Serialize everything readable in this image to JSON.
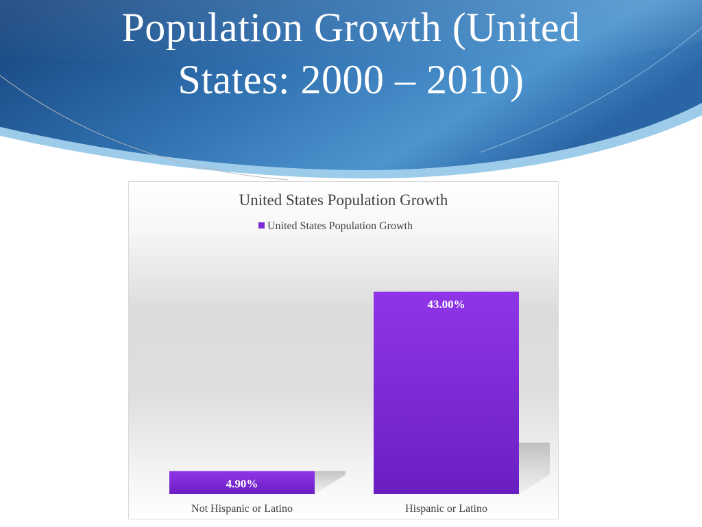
{
  "slide": {
    "title_line1": "Population Growth (United",
    "title_line2": "States: 2000 – 2010)"
  },
  "colors": {
    "banner_dark": "#1b4f8c",
    "banner_light": "#5ea8d8",
    "bar_top": "#8f35e8",
    "bar_bottom": "#6a1fc2",
    "text": "#404040",
    "label": "#ffffff"
  },
  "chart_data": {
    "type": "bar",
    "title": "United States Population Growth",
    "legend": [
      "United States Population Growth"
    ],
    "legend_position": "top",
    "categories": [
      "Not Hispanic or Latino",
      "Hispanic or Latino"
    ],
    "values": [
      4.9,
      43.0
    ],
    "data_labels": [
      "4.90%",
      "43.00%"
    ],
    "series": [
      {
        "name": "United States Population Growth",
        "values": [
          4.9,
          43.0
        ]
      }
    ],
    "ylim": [
      0,
      50
    ],
    "grid": false,
    "xlabel": "",
    "ylabel": ""
  }
}
